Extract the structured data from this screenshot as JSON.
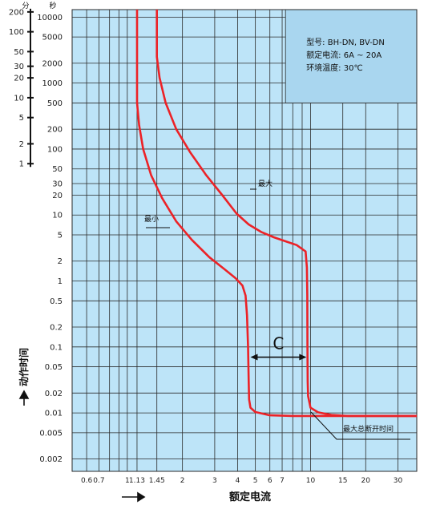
{
  "chart_data": {
    "type": "line",
    "title": "",
    "xlabel": "额定电流",
    "ylabel": "动作时间",
    "x_scale": "log",
    "y_scale": "log",
    "xlim": [
      0.5,
      38
    ],
    "ylim": [
      0.0013,
      13000
    ],
    "grid": true,
    "legend": "none",
    "x_ticks": [
      {
        "value": 0.6,
        "label": "0.6"
      },
      {
        "value": 0.7,
        "label": "0.7"
      },
      {
        "value": 1,
        "label": "1"
      },
      {
        "value": 1.13,
        "label": "1.13"
      },
      {
        "value": 1.45,
        "label": "1.45"
      },
      {
        "value": 2,
        "label": "2"
      },
      {
        "value": 3,
        "label": "3"
      },
      {
        "value": 4,
        "label": "4"
      },
      {
        "value": 5,
        "label": "5"
      },
      {
        "value": 6,
        "label": "6"
      },
      {
        "value": 7,
        "label": "7"
      },
      {
        "value": 10,
        "label": "10"
      },
      {
        "value": 15,
        "label": "15"
      },
      {
        "value": 20,
        "label": "20"
      },
      {
        "value": 30,
        "label": "30"
      }
    ],
    "x_grid": [
      0.6,
      0.7,
      0.8,
      0.9,
      1,
      1.13,
      1.45,
      2,
      3,
      4,
      5,
      6,
      7,
      8,
      9,
      10,
      15,
      20,
      30
    ],
    "y_ticks": [
      {
        "value": 10000,
        "label": "10000"
      },
      {
        "value": 5000,
        "label": "5000"
      },
      {
        "value": 2000,
        "label": "2000"
      },
      {
        "value": 1000,
        "label": "1000"
      },
      {
        "value": 500,
        "label": "500"
      },
      {
        "value": 200,
        "label": "200"
      },
      {
        "value": 100,
        "label": "100"
      },
      {
        "value": 50,
        "label": "50"
      },
      {
        "value": 30,
        "label": "30"
      },
      {
        "value": 20,
        "label": "20"
      },
      {
        "value": 10,
        "label": "10"
      },
      {
        "value": 5,
        "label": "5"
      },
      {
        "value": 2,
        "label": "2"
      },
      {
        "value": 1,
        "label": "1"
      },
      {
        "value": 0.5,
        "label": "0.5"
      },
      {
        "value": 0.2,
        "label": "0.2"
      },
      {
        "value": 0.1,
        "label": "0.1"
      },
      {
        "value": 0.05,
        "label": "0.05"
      },
      {
        "value": 0.02,
        "label": "0.02"
      },
      {
        "value": 0.01,
        "label": "0.01"
      },
      {
        "value": 0.005,
        "label": "0.005"
      },
      {
        "value": 0.002,
        "label": "0.002"
      }
    ],
    "y_grid": [
      10000,
      5000,
      2000,
      1000,
      500,
      200,
      100,
      50,
      30,
      20,
      10,
      5,
      2,
      1,
      0.5,
      0.2,
      0.1,
      0.05,
      0.02,
      0.01,
      0.005,
      0.002
    ],
    "minutes_axis": {
      "header": "分",
      "seconds_header": "秒",
      "ticks": [
        {
          "minutes": 200,
          "label": "200"
        },
        {
          "minutes": 100,
          "label": "100"
        },
        {
          "minutes": 50,
          "label": "50"
        },
        {
          "minutes": 30,
          "label": "30"
        },
        {
          "minutes": 20,
          "label": "20"
        },
        {
          "minutes": 10,
          "label": "10"
        },
        {
          "minutes": 5,
          "label": "5"
        },
        {
          "minutes": 2,
          "label": "2"
        },
        {
          "minutes": 1,
          "label": "1"
        }
      ]
    },
    "series": [
      {
        "name": "最小",
        "points": [
          [
            1.13,
            13000
          ],
          [
            1.13,
            500
          ],
          [
            1.16,
            230
          ],
          [
            1.22,
            100
          ],
          [
            1.35,
            40
          ],
          [
            1.55,
            18
          ],
          [
            1.85,
            8
          ],
          [
            2.25,
            4.2
          ],
          [
            2.8,
            2.3
          ],
          [
            3.4,
            1.5
          ],
          [
            3.9,
            1.1
          ],
          [
            4.25,
            0.85
          ],
          [
            4.42,
            0.6
          ],
          [
            4.5,
            0.3
          ],
          [
            4.56,
            0.1
          ],
          [
            4.6,
            0.03
          ],
          [
            4.62,
            0.016
          ],
          [
            4.7,
            0.012
          ],
          [
            5.0,
            0.0103
          ],
          [
            6.0,
            0.0092
          ],
          [
            8.0,
            0.009
          ],
          [
            15.0,
            0.009
          ],
          [
            38.0,
            0.009
          ]
        ]
      },
      {
        "name": "最大",
        "points": [
          [
            1.45,
            13000
          ],
          [
            1.45,
            2500
          ],
          [
            1.5,
            1200
          ],
          [
            1.62,
            500
          ],
          [
            1.85,
            200
          ],
          [
            2.2,
            90
          ],
          [
            2.7,
            40
          ],
          [
            3.3,
            20
          ],
          [
            3.95,
            10.5
          ],
          [
            4.6,
            7.2
          ],
          [
            5.4,
            5.5
          ],
          [
            6.3,
            4.6
          ],
          [
            7.3,
            4.0
          ],
          [
            8.4,
            3.5
          ],
          [
            9.4,
            2.8
          ],
          [
            9.55,
            1.6
          ],
          [
            9.6,
            0.6
          ],
          [
            9.62,
            0.1
          ],
          [
            9.65,
            0.03
          ],
          [
            9.7,
            0.018
          ],
          [
            10.0,
            0.012
          ],
          [
            11.0,
            0.0102
          ],
          [
            13.0,
            0.0093
          ],
          [
            16.0,
            0.009
          ],
          [
            38.0,
            0.009
          ]
        ]
      }
    ],
    "annotations": [
      {
        "text": "最大",
        "series": "最大"
      },
      {
        "text": "最小",
        "series": "最小"
      },
      {
        "text": "最大总断开时间"
      },
      {
        "text": "C",
        "from_x": 4.7,
        "to_x": 9.5,
        "y": 0.07
      }
    ],
    "info_box": {
      "lines": [
        "型号: BH-DN, BV-DN",
        "额定电流: 6A ~ 20A",
        "环境温度: 30℃"
      ]
    },
    "colors": {
      "background": "#bde4f8",
      "grid": "#2a2a2a",
      "curve": "#ec2227",
      "info_box": "#a9d6ef"
    }
  }
}
